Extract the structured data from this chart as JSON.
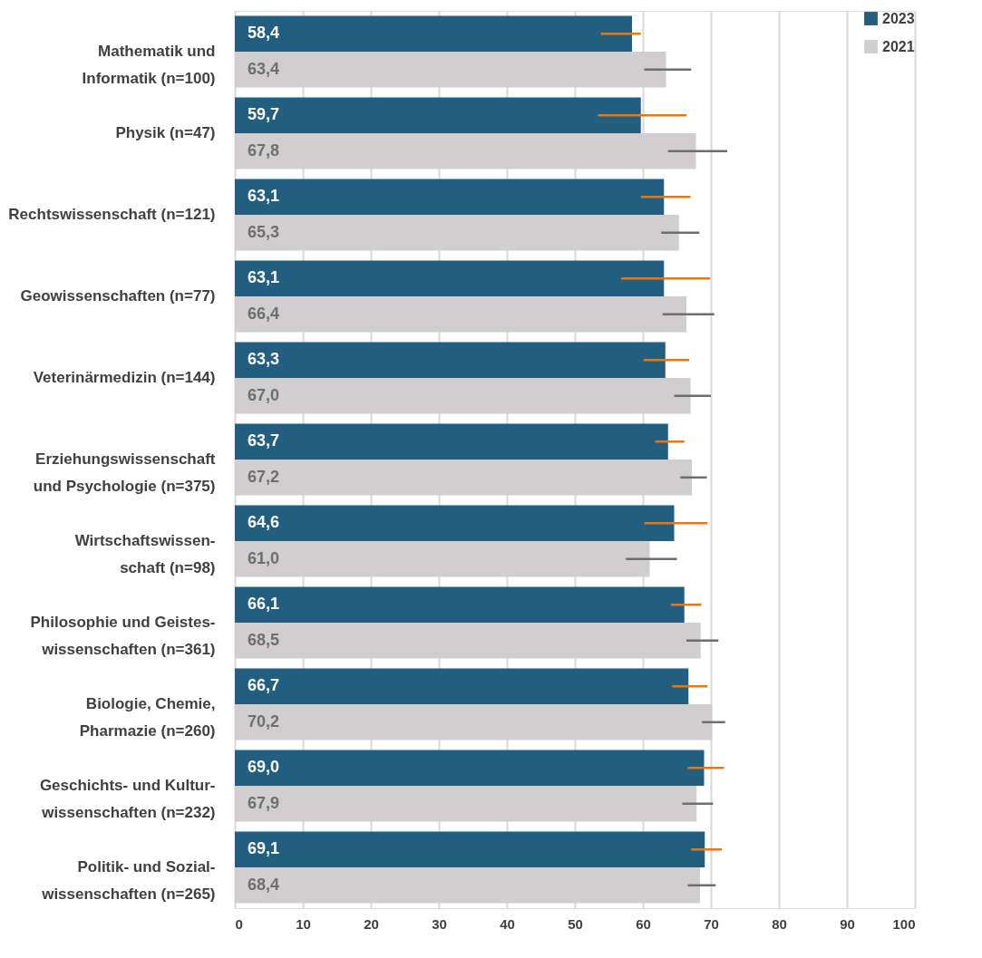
{
  "chart_data": {
    "type": "bar",
    "orientation": "horizontal",
    "categories": [
      "Mathematik und\nInformatik (n=100)",
      "Physik (n=47)",
      "Rechtswissenschaft (n=121)",
      "Geowissenschaften (n=77)",
      "Veterinärmedizin (n=144)",
      "Erziehungswissenschaft\nund Psychologie (n=375)",
      "Wirtschaftswissen-\nschaft (n=98)",
      "Philosophie und Geistes-\nwissenschaften (n=361)",
      "Biologie, Chemie,\nPharmazie (n=260)",
      "Geschichts- und Kultur-\nwissenschaften (n=232)",
      "Politik- und Sozial-\nwissenschaften (n=265)"
    ],
    "series": [
      {
        "name": "2023",
        "color": "#215e80",
        "values": [
          58.4,
          59.7,
          63.1,
          63.1,
          63.3,
          63.7,
          64.6,
          66.1,
          66.7,
          69.0,
          69.1
        ],
        "value_labels": [
          "58,4",
          "59,7",
          "63,1",
          "63,1",
          "63,3",
          "63,7",
          "64,6",
          "66,1",
          "66,7",
          "69,0",
          "69,1"
        ],
        "errors": [
          [
            53.8,
            59.7
          ],
          [
            53.4,
            66.4
          ],
          [
            59.7,
            67.0
          ],
          [
            56.8,
            69.9
          ],
          [
            60.1,
            66.8
          ],
          [
            61.8,
            66.1
          ],
          [
            60.2,
            69.5
          ],
          [
            64.1,
            68.6
          ],
          [
            64.3,
            69.5
          ],
          [
            66.6,
            71.9
          ],
          [
            67.1,
            71.6
          ]
        ]
      },
      {
        "name": "2021",
        "color": "#d0cece",
        "values": [
          63.4,
          67.8,
          65.3,
          66.4,
          67.0,
          67.2,
          61.0,
          68.5,
          70.2,
          67.9,
          68.4
        ],
        "value_labels": [
          "63,4",
          "67,8",
          "65,3",
          "66,4",
          "67,0",
          "67,2",
          "61,0",
          "68,5",
          "70,2",
          "67,9",
          "68,4"
        ],
        "errors": [
          [
            60.2,
            67.1
          ],
          [
            63.7,
            72.4
          ],
          [
            62.7,
            68.3
          ],
          [
            62.9,
            70.5
          ],
          [
            64.6,
            70.0
          ],
          [
            65.5,
            69.4
          ],
          [
            57.5,
            65.0
          ],
          [
            66.4,
            71.1
          ],
          [
            68.7,
            72.1
          ],
          [
            65.8,
            70.3
          ],
          [
            66.6,
            70.7
          ]
        ]
      }
    ],
    "xlim": [
      0,
      100
    ],
    "xticks": [
      0,
      10,
      20,
      30,
      40,
      50,
      60,
      70,
      80,
      90,
      100
    ],
    "grid": "x",
    "legend": "top right"
  }
}
